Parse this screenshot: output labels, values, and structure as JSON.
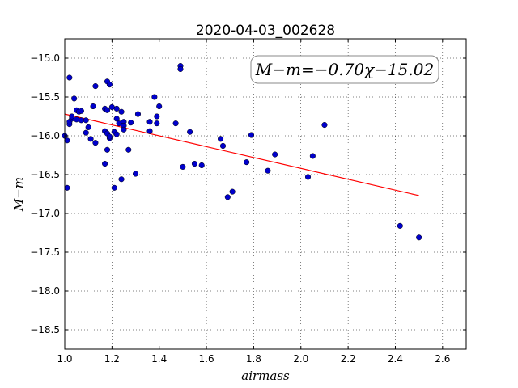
{
  "chart_data": {
    "type": "scatter",
    "title": "2020-04-03_002628",
    "xlabel": "airmass",
    "ylabel": "M−m",
    "xlim": [
      1.0,
      2.7
    ],
    "ylim": [
      -18.75,
      -14.75
    ],
    "y_inverted": true,
    "grid": true,
    "x_ticks": [
      1.0,
      1.2,
      1.4,
      1.6,
      1.8,
      2.0,
      2.2,
      2.4,
      2.6
    ],
    "x_tick_labels": [
      "1.0",
      "1.2",
      "1.4",
      "1.6",
      "1.8",
      "2.0",
      "2.2",
      "2.4",
      "2.6"
    ],
    "y_ticks": [
      -15.0,
      -15.5,
      -16.0,
      -16.5,
      -17.0,
      -17.5,
      -18.0,
      -18.5
    ],
    "y_tick_labels": [
      "−15.0",
      "−15.5",
      "−16.0",
      "−16.5",
      "−17.0",
      "−17.5",
      "−18.0",
      "−18.5"
    ],
    "annotation": "M−m=−0.70χ−15.02",
    "series": [
      {
        "kind": "points",
        "color": "#0000cc",
        "points": [
          [
            1.0,
            -16.0
          ],
          [
            1.01,
            -16.06
          ],
          [
            1.01,
            -16.67
          ],
          [
            1.02,
            -15.25
          ],
          [
            1.02,
            -15.85
          ],
          [
            1.02,
            -15.82
          ],
          [
            1.03,
            -15.78
          ],
          [
            1.03,
            -15.75
          ],
          [
            1.04,
            -15.52
          ],
          [
            1.05,
            -15.79
          ],
          [
            1.05,
            -15.67
          ],
          [
            1.06,
            -15.69
          ],
          [
            1.07,
            -15.8
          ],
          [
            1.07,
            -15.68
          ],
          [
            1.09,
            -15.96
          ],
          [
            1.09,
            -15.8
          ],
          [
            1.1,
            -15.89
          ],
          [
            1.11,
            -16.04
          ],
          [
            1.12,
            -15.62
          ],
          [
            1.13,
            -16.09
          ],
          [
            1.13,
            -15.36
          ],
          [
            1.17,
            -16.36
          ],
          [
            1.17,
            -15.94
          ],
          [
            1.17,
            -15.65
          ],
          [
            1.18,
            -15.3
          ],
          [
            1.18,
            -15.67
          ],
          [
            1.18,
            -15.97
          ],
          [
            1.18,
            -16.18
          ],
          [
            1.19,
            -15.34
          ],
          [
            1.19,
            -16.03
          ],
          [
            1.19,
            -16.01
          ],
          [
            1.2,
            -15.63
          ],
          [
            1.21,
            -16.67
          ],
          [
            1.21,
            -15.95
          ],
          [
            1.22,
            -15.78
          ],
          [
            1.22,
            -15.98
          ],
          [
            1.22,
            -15.65
          ],
          [
            1.23,
            -15.84
          ],
          [
            1.24,
            -16.56
          ],
          [
            1.24,
            -15.69
          ],
          [
            1.25,
            -15.82
          ],
          [
            1.25,
            -15.87
          ],
          [
            1.25,
            -15.92
          ],
          [
            1.27,
            -16.18
          ],
          [
            1.28,
            -15.83
          ],
          [
            1.3,
            -16.49
          ],
          [
            1.31,
            -15.72
          ],
          [
            1.36,
            -15.82
          ],
          [
            1.36,
            -15.94
          ],
          [
            1.38,
            -15.5
          ],
          [
            1.39,
            -15.84
          ],
          [
            1.39,
            -15.75
          ],
          [
            1.4,
            -15.62
          ],
          [
            1.47,
            -15.84
          ],
          [
            1.49,
            -15.1
          ],
          [
            1.49,
            -15.14
          ],
          [
            1.5,
            -16.4
          ],
          [
            1.53,
            -15.95
          ],
          [
            1.55,
            -16.36
          ],
          [
            1.58,
            -16.38
          ],
          [
            1.66,
            -16.04
          ],
          [
            1.67,
            -16.13
          ],
          [
            1.69,
            -16.79
          ],
          [
            1.71,
            -16.72
          ],
          [
            1.77,
            -16.34
          ],
          [
            1.79,
            -15.99
          ],
          [
            1.86,
            -16.45
          ],
          [
            1.89,
            -16.24
          ],
          [
            2.03,
            -16.53
          ],
          [
            2.05,
            -16.26
          ],
          [
            2.1,
            -15.86
          ],
          [
            2.42,
            -17.16
          ],
          [
            2.5,
            -17.31
          ]
        ]
      },
      {
        "kind": "fit_line",
        "color": "#ff0000",
        "slope": -0.7,
        "intercept": -15.02,
        "x_range": [
          1.0,
          2.5
        ]
      }
    ]
  }
}
